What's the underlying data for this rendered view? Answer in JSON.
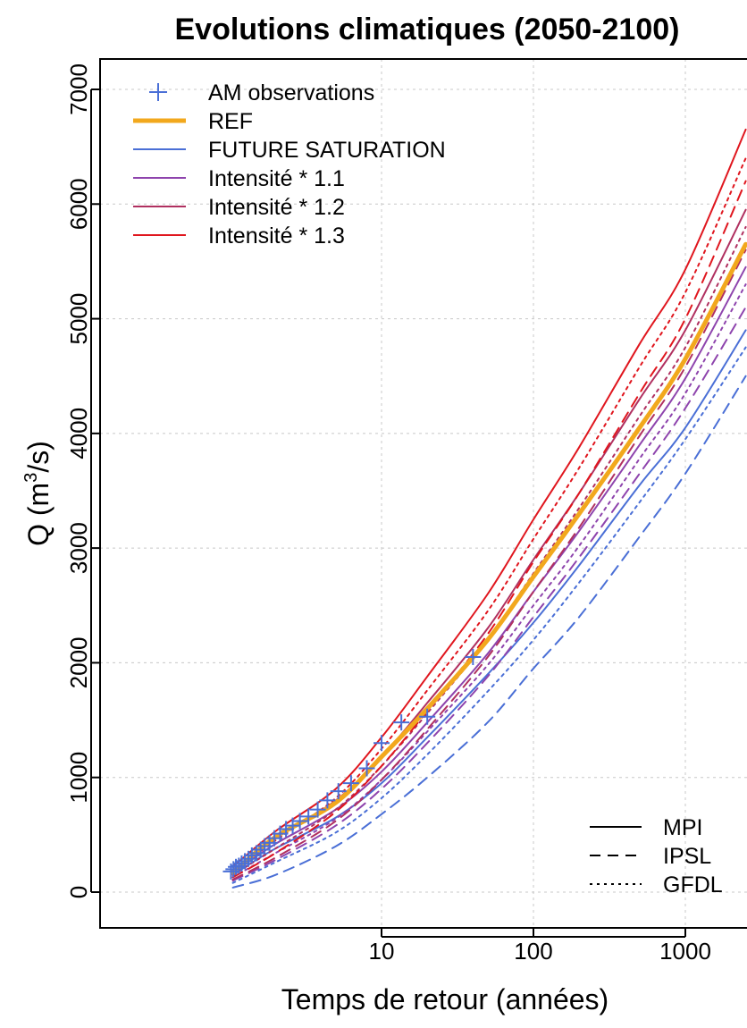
{
  "chart_data": {
    "type": "line",
    "title": "Evolutions climatiques (2050-2100)",
    "xlabel": "Temps de retour (années)",
    "ylabel_main": "Q (m",
    "ylabel_sup": "3",
    "ylabel_end": "/s)",
    "x_scale": "log",
    "xlim": [
      1.1,
      2500
    ],
    "ylim": [
      -200,
      7300
    ],
    "x_ticks": [
      {
        "value": 10,
        "label": "10"
      },
      {
        "value": 100,
        "label": "100"
      },
      {
        "value": 1000,
        "label": "1000"
      }
    ],
    "y_ticks": [
      {
        "value": 0,
        "label": "0"
      },
      {
        "value": 1000,
        "label": "1000"
      },
      {
        "value": 2000,
        "label": "2000"
      },
      {
        "value": 3000,
        "label": "3000"
      },
      {
        "value": 4000,
        "label": "4000"
      },
      {
        "value": 5000,
        "label": "5000"
      },
      {
        "value": 6000,
        "label": "6000"
      },
      {
        "value": 7000,
        "label": "7000"
      }
    ],
    "grid": true,
    "colors": {
      "observations": "#4a6fd6",
      "ref": "#f2a81d",
      "future_saturation": "#4a6fd6",
      "intensite_1_1": "#8e44ad",
      "intensite_1_2": "#b03060",
      "intensite_1_3": "#e0161e"
    },
    "legend_series": [
      {
        "label": "AM observations",
        "kind": "points",
        "color": "#4a6fd6"
      },
      {
        "label": "REF",
        "kind": "thick-line",
        "color": "#f2a81d"
      },
      {
        "label": "FUTURE SATURATION",
        "kind": "line",
        "color": "#4a6fd6"
      },
      {
        "label": "Intensité * 1.1",
        "kind": "line",
        "color": "#8e44ad"
      },
      {
        "label": "Intensité * 1.2",
        "kind": "line",
        "color": "#b03060"
      },
      {
        "label": "Intensité * 1.3",
        "kind": "line",
        "color": "#e0161e"
      }
    ],
    "legend_models": [
      {
        "label": "MPI",
        "dash": "solid"
      },
      {
        "label": "IPSL",
        "dash": "dashed"
      },
      {
        "label": "GFDL",
        "dash": "dotted"
      }
    ],
    "legend_series_placement": "top-left",
    "legend_models_placement": "bottom-right",
    "observations": {
      "x": [
        1.02,
        1.06,
        1.1,
        1.15,
        1.2,
        1.26,
        1.33,
        1.4,
        1.5,
        1.6,
        1.7,
        1.83,
        1.97,
        2.15,
        2.35,
        2.6,
        2.9,
        3.3,
        3.8,
        4.4,
        5.2,
        6.3,
        8.0,
        10.0,
        13.5,
        20.0,
        40.0
      ],
      "y": [
        180,
        200,
        220,
        230,
        250,
        270,
        290,
        320,
        340,
        370,
        400,
        430,
        470,
        510,
        550,
        580,
        620,
        660,
        720,
        800,
        880,
        950,
        1080,
        1300,
        1480,
        1530,
        2050
      ]
    },
    "series": [
      {
        "name": "REF",
        "model": "REF",
        "color": "#f2a81d",
        "dash": "solid",
        "width": 5,
        "x": [
          1.05,
          2,
          5,
          10,
          20,
          50,
          100,
          200,
          500,
          1000,
          2500
        ],
        "y": [
          170,
          480,
          780,
          1180,
          1600,
          2200,
          2750,
          3300,
          4050,
          4650,
          5650
        ]
      },
      {
        "name": "FUTURE SATURATION",
        "model": "MPI",
        "color": "#4a6fd6",
        "dash": "solid",
        "width": 2,
        "x": [
          1.05,
          2,
          5,
          10,
          20,
          50,
          100,
          200,
          500,
          1000,
          2500
        ],
        "y": [
          150,
          380,
          650,
          950,
          1350,
          1900,
          2350,
          2850,
          3550,
          4050,
          4900
        ]
      },
      {
        "name": "FUTURE SATURATION",
        "model": "IPSL",
        "color": "#4a6fd6",
        "dash": "dashed",
        "width": 2,
        "x": [
          1.05,
          2,
          5,
          10,
          20,
          50,
          100,
          200,
          500,
          1000,
          2500
        ],
        "y": [
          40,
          150,
          400,
          680,
          1000,
          1480,
          1950,
          2400,
          3100,
          3650,
          4500
        ]
      },
      {
        "name": "FUTURE SATURATION",
        "model": "GFDL",
        "color": "#4a6fd6",
        "dash": "dotted",
        "width": 2,
        "x": [
          1.05,
          2,
          5,
          10,
          20,
          50,
          100,
          200,
          500,
          1000,
          2500
        ],
        "y": [
          80,
          260,
          520,
          820,
          1200,
          1750,
          2200,
          2700,
          3400,
          3950,
          4750
        ]
      },
      {
        "name": "Intensité * 1.1",
        "model": "MPI",
        "color": "#8e44ad",
        "dash": "solid",
        "width": 2,
        "x": [
          1.05,
          2,
          5,
          10,
          20,
          50,
          100,
          200,
          500,
          1000,
          2500
        ],
        "y": [
          170,
          420,
          720,
          1050,
          1480,
          2080,
          2620,
          3150,
          3900,
          4480,
          5450
        ]
      },
      {
        "name": "Intensité * 1.1",
        "model": "IPSL",
        "color": "#8e44ad",
        "dash": "dashed",
        "width": 2,
        "x": [
          1.05,
          2,
          5,
          10,
          20,
          50,
          100,
          200,
          500,
          1000,
          2500
        ],
        "y": [
          100,
          280,
          580,
          900,
          1300,
          1880,
          2400,
          2920,
          3650,
          4220,
          5100
        ]
      },
      {
        "name": "Intensité * 1.1",
        "model": "GFDL",
        "color": "#8e44ad",
        "dash": "dotted",
        "width": 2,
        "x": [
          1.05,
          2,
          5,
          10,
          20,
          50,
          100,
          200,
          500,
          1000,
          2500
        ],
        "y": [
          130,
          340,
          640,
          980,
          1400,
          1980,
          2500,
          3020,
          3780,
          4350,
          5300
        ]
      },
      {
        "name": "Intensité * 1.2",
        "model": "MPI",
        "color": "#b03060",
        "dash": "solid",
        "width": 2,
        "x": [
          1.05,
          2,
          5,
          10,
          20,
          50,
          100,
          200,
          500,
          1000,
          2500
        ],
        "y": [
          190,
          470,
          800,
          1180,
          1650,
          2300,
          2900,
          3480,
          4300,
          4900,
          5950
        ]
      },
      {
        "name": "Intensité * 1.2",
        "model": "IPSL",
        "color": "#b03060",
        "dash": "dashed",
        "width": 2,
        "x": [
          1.05,
          2,
          5,
          10,
          20,
          50,
          100,
          200,
          500,
          1000,
          2500
        ],
        "y": [
          110,
          300,
          620,
          980,
          1420,
          2050,
          2620,
          3180,
          3980,
          4580,
          5600
        ]
      },
      {
        "name": "Intensité * 1.2",
        "model": "GFDL",
        "color": "#b03060",
        "dash": "dotted",
        "width": 2,
        "x": [
          1.05,
          2,
          5,
          10,
          20,
          50,
          100,
          200,
          500,
          1000,
          2500
        ],
        "y": [
          150,
          380,
          720,
          1100,
          1560,
          2200,
          2780,
          3350,
          4150,
          4750,
          5800
        ]
      },
      {
        "name": "Intensité * 1.3",
        "model": "MPI",
        "color": "#e0161e",
        "dash": "solid",
        "width": 2,
        "x": [
          1.05,
          2,
          5,
          10,
          20,
          50,
          100,
          200,
          500,
          1000,
          2500
        ],
        "y": [
          220,
          530,
          900,
          1350,
          1880,
          2600,
          3250,
          3880,
          4780,
          5430,
          6650
        ]
      },
      {
        "name": "Intensité * 1.3",
        "model": "IPSL",
        "color": "#e0161e",
        "dash": "dashed",
        "width": 2,
        "x": [
          1.05,
          2,
          5,
          10,
          20,
          50,
          100,
          200,
          500,
          1000,
          2500
        ],
        "y": [
          130,
          340,
          700,
          1100,
          1580,
          2250,
          2880,
          3480,
          4350,
          5000,
          6200
        ]
      },
      {
        "name": "Intensité * 1.3",
        "model": "GFDL",
        "color": "#e0161e",
        "dash": "dotted",
        "width": 2,
        "x": [
          1.05,
          2,
          5,
          10,
          20,
          50,
          100,
          200,
          500,
          1000,
          2500
        ],
        "y": [
          180,
          450,
          820,
          1250,
          1760,
          2450,
          3080,
          3700,
          4580,
          5230,
          6400
        ]
      }
    ]
  }
}
